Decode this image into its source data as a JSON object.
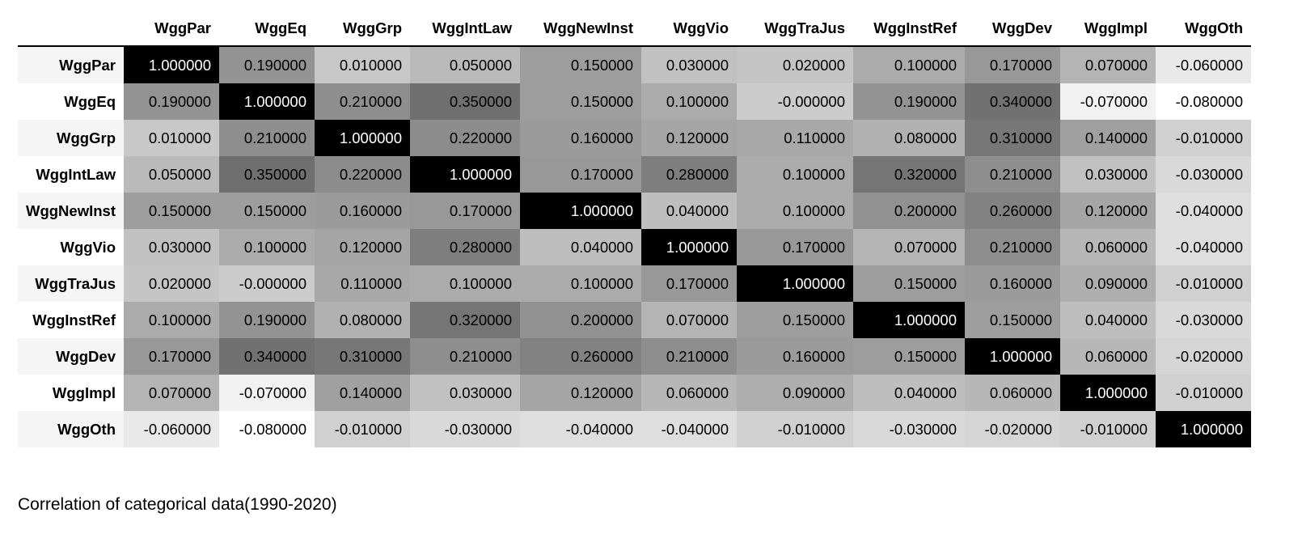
{
  "chart_data": {
    "type": "heatmap",
    "title": "",
    "caption": "Correlation of categorical data(1990-2020)",
    "colormap": "greys",
    "color_range": [
      -0.08,
      1.0
    ],
    "columns": [
      "WggPar",
      "WggEq",
      "WggGrp",
      "WggIntLaw",
      "WggNewInst",
      "WggVio",
      "WggTraJus",
      "WggInstRef",
      "WggDev",
      "WggImpl",
      "WggOth"
    ],
    "rows": [
      "WggPar",
      "WggEq",
      "WggGrp",
      "WggIntLaw",
      "WggNewInst",
      "WggVio",
      "WggTraJus",
      "WggInstRef",
      "WggDev",
      "WggImpl",
      "WggOth"
    ],
    "values": [
      [
        "1.000000",
        "0.190000",
        "0.010000",
        "0.050000",
        "0.150000",
        "0.030000",
        "0.020000",
        "0.100000",
        "0.170000",
        "0.070000",
        "-0.060000"
      ],
      [
        "0.190000",
        "1.000000",
        "0.210000",
        "0.350000",
        "0.150000",
        "0.100000",
        "-0.000000",
        "0.190000",
        "0.340000",
        "-0.070000",
        "-0.080000"
      ],
      [
        "0.010000",
        "0.210000",
        "1.000000",
        "0.220000",
        "0.160000",
        "0.120000",
        "0.110000",
        "0.080000",
        "0.310000",
        "0.140000",
        "-0.010000"
      ],
      [
        "0.050000",
        "0.350000",
        "0.220000",
        "1.000000",
        "0.170000",
        "0.280000",
        "0.100000",
        "0.320000",
        "0.210000",
        "0.030000",
        "-0.030000"
      ],
      [
        "0.150000",
        "0.150000",
        "0.160000",
        "0.170000",
        "1.000000",
        "0.040000",
        "0.100000",
        "0.200000",
        "0.260000",
        "0.120000",
        "-0.040000"
      ],
      [
        "0.030000",
        "0.100000",
        "0.120000",
        "0.280000",
        "0.040000",
        "1.000000",
        "0.170000",
        "0.070000",
        "0.210000",
        "0.060000",
        "-0.040000"
      ],
      [
        "0.020000",
        "-0.000000",
        "0.110000",
        "0.100000",
        "0.100000",
        "0.170000",
        "1.000000",
        "0.150000",
        "0.160000",
        "0.090000",
        "-0.010000"
      ],
      [
        "0.100000",
        "0.190000",
        "0.080000",
        "0.320000",
        "0.200000",
        "0.070000",
        "0.150000",
        "1.000000",
        "0.150000",
        "0.040000",
        "-0.030000"
      ],
      [
        "0.170000",
        "0.340000",
        "0.310000",
        "0.210000",
        "0.260000",
        "0.210000",
        "0.160000",
        "0.150000",
        "1.000000",
        "0.060000",
        "-0.020000"
      ],
      [
        "0.070000",
        "-0.070000",
        "0.140000",
        "0.030000",
        "0.120000",
        "0.060000",
        "0.090000",
        "0.040000",
        "0.060000",
        "1.000000",
        "-0.010000"
      ],
      [
        "-0.060000",
        "-0.080000",
        "-0.010000",
        "-0.030000",
        "-0.040000",
        "-0.040000",
        "-0.010000",
        "-0.030000",
        "-0.020000",
        "-0.010000",
        "1.000000"
      ]
    ]
  }
}
